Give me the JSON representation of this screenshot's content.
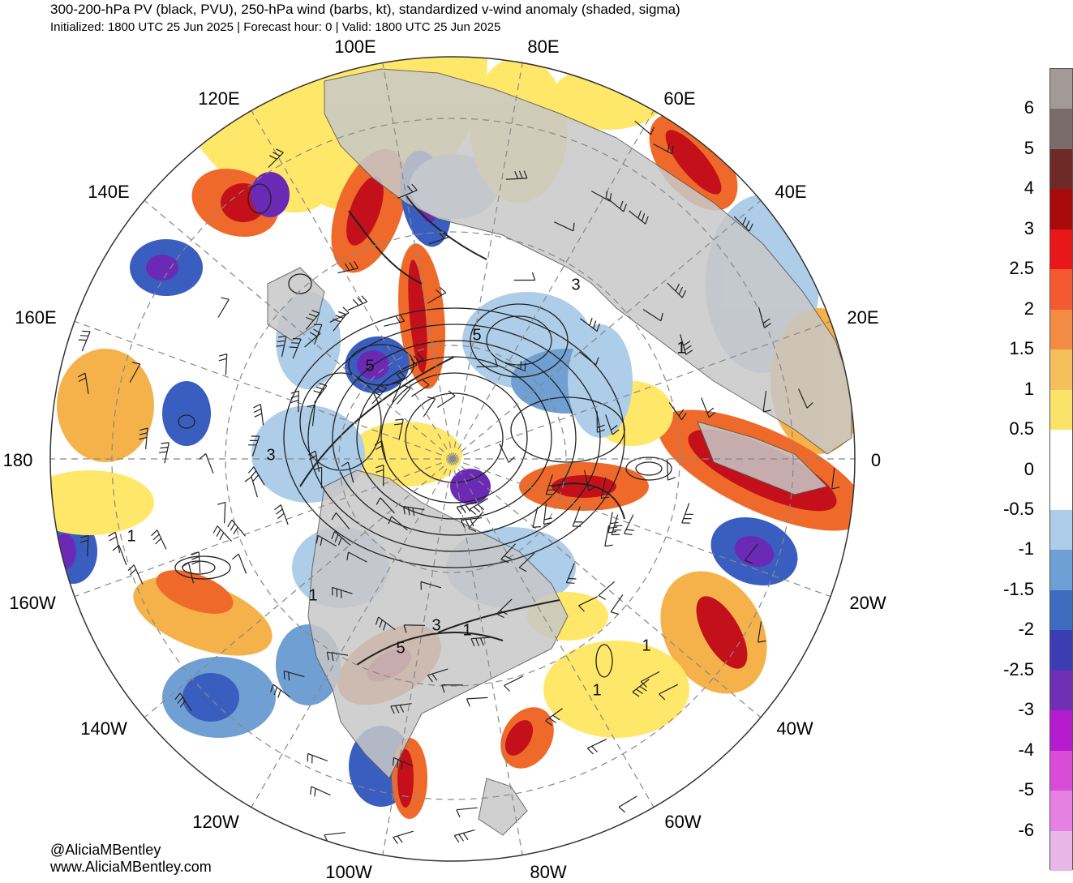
{
  "header": {
    "title": "300-200-hPa PV (black, PVU), 250-hPa wind (barbs, kt), standardized v-wind anomaly (shaded, sigma)",
    "subtitle": "Initialized: 1800 UTC 25 Jun 2025 | Forecast hour: 0 | Valid: 1800 UTC 25 Jun 2025"
  },
  "map": {
    "projection": "north-polar-stereographic",
    "longitude_labels": [
      "100E",
      "80E",
      "120E",
      "60E",
      "140E",
      "40E",
      "160E",
      "20E",
      "180",
      "0",
      "160W",
      "20W",
      "140W",
      "40W",
      "120W",
      "60W",
      "100W",
      "80W"
    ],
    "pv_contour_labels": [
      "5",
      "1",
      "3",
      "3",
      "1",
      "1",
      "3",
      "5",
      "1",
      "1",
      "1",
      "5"
    ],
    "colors": {
      "land": "#c8c8c8",
      "neg_weak": "#aecde8",
      "neg_mid": "#6f9fd3",
      "neg_strong": "#3a5ec0",
      "neg_max": "#6a2ab5",
      "pos_weak": "#ffe76a",
      "pos_mid": "#f5b24a",
      "pos_strong": "#ef6a2a",
      "pos_max": "#c4101a"
    }
  },
  "colorbar": {
    "labels": [
      "6",
      "5",
      "4",
      "3",
      "2.5",
      "2",
      "1.5",
      "1",
      "0.5",
      "0",
      "-0.5",
      "-1",
      "-1.5",
      "-2",
      "-2.5",
      "-3",
      "-4",
      "-5",
      "-6"
    ],
    "colors": [
      "#a39a98",
      "#7a6c6a",
      "#6e2a26",
      "#a80a0a",
      "#e81818",
      "#f45a32",
      "#f48b44",
      "#f5c05c",
      "#fbe36a",
      "#ffffff",
      "#ffffff",
      "#aecde8",
      "#6e9fd5",
      "#3d6cc0",
      "#3c3db3",
      "#6e2fb5",
      "#b41ccd",
      "#d84cd8",
      "#e680e3",
      "#e9b6e8"
    ]
  },
  "credits": {
    "handle": "@AliciaMBentley",
    "website": "www.AliciaMBentley.com"
  }
}
